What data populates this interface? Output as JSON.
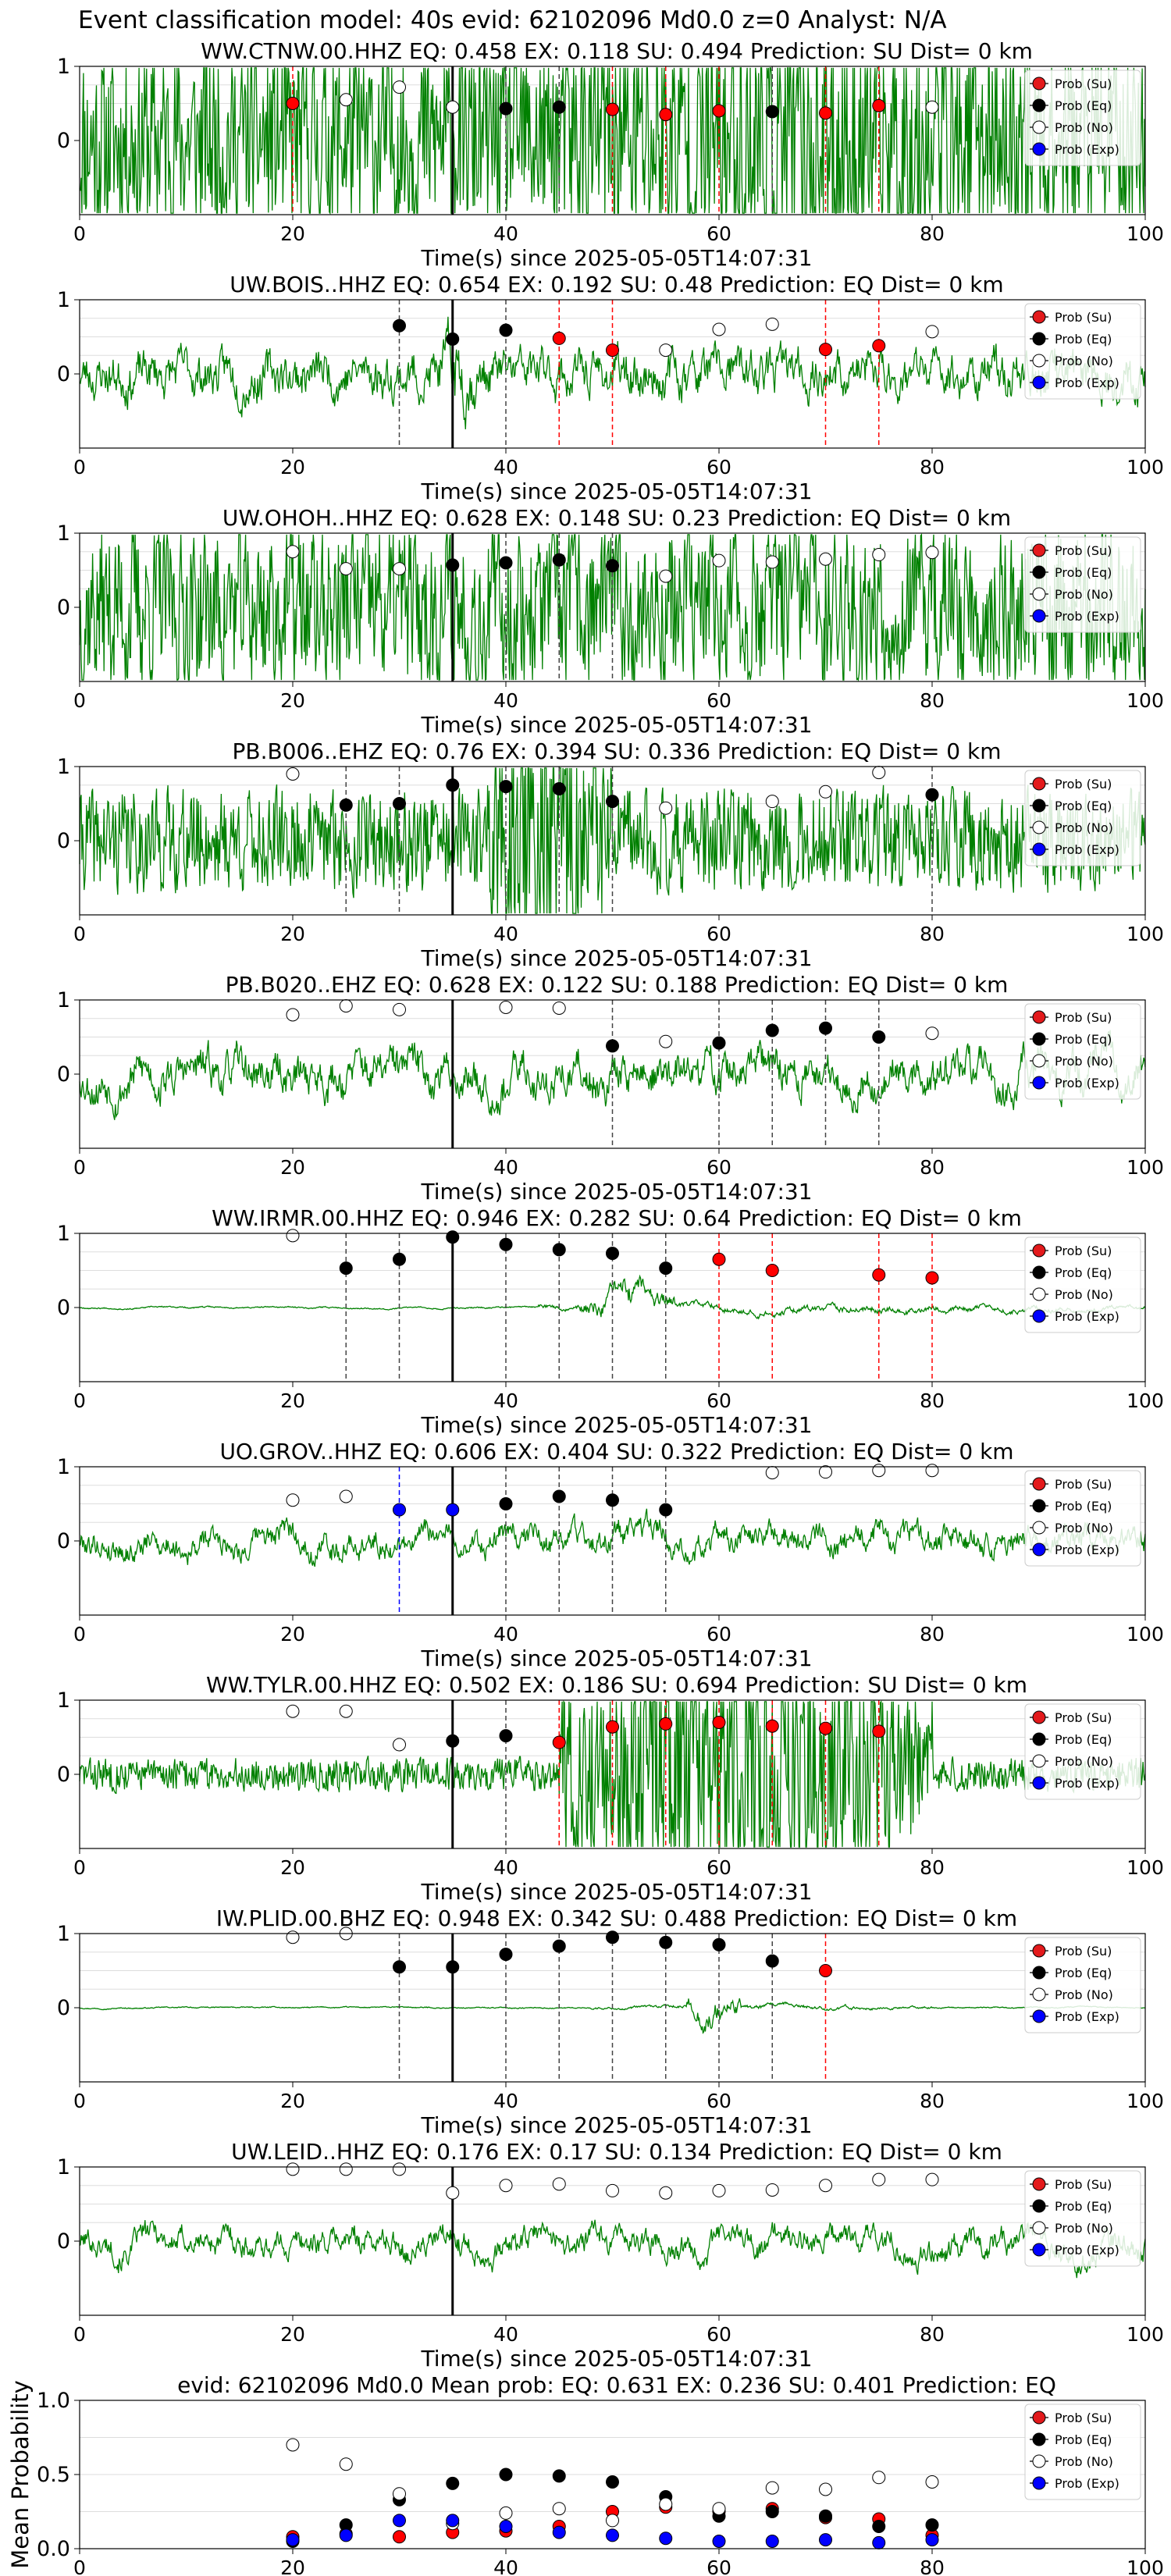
{
  "figure_title": "Event classification model: 40s evid: 62102096 Md0.0 z=0 Analyst: N/A",
  "xlabel": "Time(s) since 2025-05-05T14:07:31",
  "legend": [
    {
      "label": "Prob (Su)",
      "color": "#e31a1c"
    },
    {
      "label": "Prob (Eq)",
      "color": "#000000"
    },
    {
      "label": "Prob (No)",
      "color": "#ffffff"
    },
    {
      "label": "Prob (Exp)",
      "color": "#0000ff"
    }
  ],
  "colors": {
    "trace": "#008000",
    "su": "#ff0000",
    "eq": "#000000",
    "no": "#ffffff",
    "exp": "#0000ff",
    "line_su": "#ff0000",
    "line_eq": "#444444",
    "line_exp": "#0000ff"
  },
  "chart_data": [
    {
      "type": "line",
      "title": "WW.CTNW.00.HHZ   EQ: 0.458  EX: 0.118  SU: 0.494   Prediction: SU    Dist= 0 km",
      "xlim": [
        0,
        100
      ],
      "xticks": [
        0,
        20,
        40,
        60,
        80,
        100
      ],
      "ylim": [
        -1,
        1
      ],
      "yticks": [
        0,
        1
      ],
      "waveform": {
        "amp": 0.55,
        "seed": 11,
        "smooth": 0.25,
        "bursts": [
          [
            35,
            100,
            0.75
          ]
        ],
        "base": 0.45
      },
      "event_line": 35,
      "points": [
        {
          "x": 20,
          "y": 0.5,
          "cls": "su"
        },
        {
          "x": 25,
          "y": 0.55,
          "cls": "no"
        },
        {
          "x": 30,
          "y": 0.72,
          "cls": "no"
        },
        {
          "x": 35,
          "y": 0.45,
          "cls": "no"
        },
        {
          "x": 40,
          "y": 0.43,
          "cls": "eq"
        },
        {
          "x": 45,
          "y": 0.45,
          "cls": "eq"
        },
        {
          "x": 50,
          "y": 0.42,
          "cls": "su"
        },
        {
          "x": 55,
          "y": 0.35,
          "cls": "su"
        },
        {
          "x": 60,
          "y": 0.4,
          "cls": "su"
        },
        {
          "x": 65,
          "y": 0.39,
          "cls": "eq"
        },
        {
          "x": 70,
          "y": 0.37,
          "cls": "su"
        },
        {
          "x": 75,
          "y": 0.47,
          "cls": "su"
        },
        {
          "x": 80,
          "y": 0.45,
          "cls": "no"
        }
      ]
    },
    {
      "type": "line",
      "title": "UW.BOIS..HHZ   EQ: 0.654  EX: 0.192  SU: 0.48   Prediction: EQ    Dist= 0 km",
      "xlim": [
        0,
        100
      ],
      "xticks": [
        0,
        20,
        40,
        60,
        80,
        100
      ],
      "ylim": [
        -1,
        1
      ],
      "yticks": [
        0,
        1
      ],
      "waveform": {
        "amp": 0.45,
        "seed": 23,
        "smooth": 0.85,
        "bursts": [
          [
            33,
            38,
            0.9
          ],
          [
            44,
            48,
            0.6
          ]
        ],
        "base": 0.5
      },
      "event_line": 35,
      "points": [
        {
          "x": 30,
          "y": 0.65,
          "cls": "eq"
        },
        {
          "x": 35,
          "y": 0.47,
          "cls": "eq"
        },
        {
          "x": 40,
          "y": 0.59,
          "cls": "eq"
        },
        {
          "x": 45,
          "y": 0.48,
          "cls": "su"
        },
        {
          "x": 50,
          "y": 0.32,
          "cls": "su"
        },
        {
          "x": 55,
          "y": 0.32,
          "cls": "no"
        },
        {
          "x": 60,
          "y": 0.6,
          "cls": "no"
        },
        {
          "x": 65,
          "y": 0.67,
          "cls": "no"
        },
        {
          "x": 70,
          "y": 0.33,
          "cls": "su"
        },
        {
          "x": 75,
          "y": 0.38,
          "cls": "su"
        },
        {
          "x": 80,
          "y": 0.57,
          "cls": "no"
        }
      ]
    },
    {
      "type": "line",
      "title": "UW.OHOH..HHZ   EQ: 0.628  EX: 0.148  SU: 0.23   Prediction: EQ    Dist= 0 km",
      "xlim": [
        0,
        100
      ],
      "xticks": [
        0,
        20,
        40,
        60,
        80,
        100
      ],
      "ylim": [
        -1,
        1
      ],
      "yticks": [
        0,
        1
      ],
      "waveform": {
        "amp": 0.6,
        "seed": 37,
        "smooth": 0.5,
        "bursts": [],
        "base": 0.6
      },
      "event_line": 35,
      "points": [
        {
          "x": 20,
          "y": 0.75,
          "cls": "no"
        },
        {
          "x": 25,
          "y": 0.52,
          "cls": "no"
        },
        {
          "x": 30,
          "y": 0.52,
          "cls": "no"
        },
        {
          "x": 35,
          "y": 0.57,
          "cls": "eq"
        },
        {
          "x": 40,
          "y": 0.6,
          "cls": "eq"
        },
        {
          "x": 45,
          "y": 0.64,
          "cls": "eq"
        },
        {
          "x": 50,
          "y": 0.56,
          "cls": "eq"
        },
        {
          "x": 55,
          "y": 0.42,
          "cls": "no"
        },
        {
          "x": 60,
          "y": 0.63,
          "cls": "no"
        },
        {
          "x": 65,
          "y": 0.61,
          "cls": "no"
        },
        {
          "x": 70,
          "y": 0.65,
          "cls": "no"
        },
        {
          "x": 75,
          "y": 0.71,
          "cls": "no"
        },
        {
          "x": 80,
          "y": 0.74,
          "cls": "no"
        }
      ]
    },
    {
      "type": "line",
      "title": "PB.B006..EHZ   EQ: 0.76  EX: 0.394  SU: 0.336   Prediction: EQ    Dist= 0 km",
      "xlim": [
        0,
        100
      ],
      "xticks": [
        0,
        20,
        40,
        60,
        80,
        100
      ],
      "ylim": [
        -1,
        1
      ],
      "yticks": [
        0,
        1
      ],
      "waveform": {
        "amp": 0.22,
        "seed": 41,
        "smooth": 0.3,
        "bursts": [
          [
            38,
            50,
            0.8
          ]
        ],
        "base": 0.25
      },
      "event_line": 35,
      "points": [
        {
          "x": 20,
          "y": 0.9,
          "cls": "no"
        },
        {
          "x": 25,
          "y": 0.48,
          "cls": "eq"
        },
        {
          "x": 30,
          "y": 0.5,
          "cls": "eq"
        },
        {
          "x": 35,
          "y": 0.75,
          "cls": "eq"
        },
        {
          "x": 40,
          "y": 0.73,
          "cls": "eq"
        },
        {
          "x": 45,
          "y": 0.7,
          "cls": "eq"
        },
        {
          "x": 50,
          "y": 0.53,
          "cls": "eq"
        },
        {
          "x": 55,
          "y": 0.44,
          "cls": "no"
        },
        {
          "x": 65,
          "y": 0.53,
          "cls": "no"
        },
        {
          "x": 70,
          "y": 0.66,
          "cls": "no"
        },
        {
          "x": 75,
          "y": 0.92,
          "cls": "no"
        },
        {
          "x": 80,
          "y": 0.62,
          "cls": "eq"
        }
      ]
    },
    {
      "type": "line",
      "title": "PB.B020..EHZ   EQ: 0.628  EX: 0.122  SU: 0.188   Prediction: EQ    Dist= 0 km",
      "xlim": [
        0,
        100
      ],
      "xticks": [
        0,
        20,
        40,
        60,
        80,
        100
      ],
      "ylim": [
        -1,
        1
      ],
      "yticks": [
        0,
        1
      ],
      "waveform": {
        "amp": 0.7,
        "seed": 53,
        "smooth": 0.9,
        "bursts": [],
        "base": 0.7
      },
      "event_line": 35,
      "points": [
        {
          "x": 20,
          "y": 0.8,
          "cls": "no"
        },
        {
          "x": 25,
          "y": 0.92,
          "cls": "no"
        },
        {
          "x": 30,
          "y": 0.87,
          "cls": "no"
        },
        {
          "x": 40,
          "y": 0.9,
          "cls": "no"
        },
        {
          "x": 45,
          "y": 0.89,
          "cls": "no"
        },
        {
          "x": 50,
          "y": 0.38,
          "cls": "eq"
        },
        {
          "x": 55,
          "y": 0.44,
          "cls": "no"
        },
        {
          "x": 60,
          "y": 0.42,
          "cls": "eq"
        },
        {
          "x": 65,
          "y": 0.59,
          "cls": "eq"
        },
        {
          "x": 70,
          "y": 0.62,
          "cls": "eq"
        },
        {
          "x": 75,
          "y": 0.5,
          "cls": "eq"
        },
        {
          "x": 80,
          "y": 0.55,
          "cls": "no"
        }
      ]
    },
    {
      "type": "line",
      "title": "WW.IRMR.00.HHZ   EQ: 0.946  EX: 0.282  SU: 0.64   Prediction: EQ    Dist= 0 km",
      "xlim": [
        0,
        100
      ],
      "xticks": [
        0,
        20,
        40,
        60,
        80,
        100
      ],
      "ylim": [
        -1,
        1
      ],
      "yticks": [
        0,
        1
      ],
      "waveform": {
        "amp": 0.05,
        "seed": 67,
        "smooth": 0.95,
        "bursts": [
          [
            43,
            100,
            0.25
          ],
          [
            47,
            56,
            0.9
          ]
        ],
        "base": 0.05
      },
      "event_line": 35,
      "points": [
        {
          "x": 20,
          "y": 0.97,
          "cls": "no"
        },
        {
          "x": 25,
          "y": 0.53,
          "cls": "eq"
        },
        {
          "x": 30,
          "y": 0.65,
          "cls": "eq"
        },
        {
          "x": 35,
          "y": 0.95,
          "cls": "eq"
        },
        {
          "x": 40,
          "y": 0.85,
          "cls": "eq"
        },
        {
          "x": 45,
          "y": 0.78,
          "cls": "eq"
        },
        {
          "x": 50,
          "y": 0.73,
          "cls": "eq"
        },
        {
          "x": 55,
          "y": 0.53,
          "cls": "eq"
        },
        {
          "x": 60,
          "y": 0.65,
          "cls": "su"
        },
        {
          "x": 65,
          "y": 0.5,
          "cls": "su"
        },
        {
          "x": 75,
          "y": 0.44,
          "cls": "su"
        },
        {
          "x": 80,
          "y": 0.4,
          "cls": "su"
        }
      ]
    },
    {
      "type": "line",
      "title": "UO.GROV..HHZ   EQ: 0.606  EX: 0.404  SU: 0.322   Prediction: EQ    Dist= 0 km",
      "xlim": [
        0,
        100
      ],
      "xticks": [
        0,
        20,
        40,
        60,
        80,
        100
      ],
      "ylim": [
        -1,
        1
      ],
      "yticks": [
        0,
        1
      ],
      "waveform": {
        "amp": 0.65,
        "seed": 79,
        "smooth": 0.93,
        "bursts": [
          [
            43,
            46,
            0.9
          ]
        ],
        "base": 0.65
      },
      "event_line": 35,
      "points": [
        {
          "x": 20,
          "y": 0.55,
          "cls": "no"
        },
        {
          "x": 25,
          "y": 0.6,
          "cls": "no"
        },
        {
          "x": 30,
          "y": 0.42,
          "cls": "exp"
        },
        {
          "x": 35,
          "y": 0.42,
          "cls": "exp"
        },
        {
          "x": 40,
          "y": 0.5,
          "cls": "eq"
        },
        {
          "x": 45,
          "y": 0.6,
          "cls": "eq"
        },
        {
          "x": 50,
          "y": 0.55,
          "cls": "eq"
        },
        {
          "x": 55,
          "y": 0.42,
          "cls": "eq"
        },
        {
          "x": 65,
          "y": 0.92,
          "cls": "no"
        },
        {
          "x": 70,
          "y": 0.93,
          "cls": "no"
        },
        {
          "x": 75,
          "y": 0.95,
          "cls": "no"
        },
        {
          "x": 80,
          "y": 0.95,
          "cls": "no"
        }
      ]
    },
    {
      "type": "line",
      "title": "WW.TYLR.00.HHZ   EQ: 0.502  EX: 0.186  SU: 0.694   Prediction: SU    Dist= 0 km",
      "xlim": [
        0,
        100
      ],
      "xticks": [
        0,
        20,
        40,
        60,
        80,
        100
      ],
      "ylim": [
        -1,
        1
      ],
      "yticks": [
        0,
        1
      ],
      "waveform": {
        "amp": 0.08,
        "seed": 83,
        "smooth": 0.3,
        "bursts": [
          [
            45,
            80,
            0.8
          ]
        ],
        "base": 0.08
      },
      "event_line": 35,
      "points": [
        {
          "x": 20,
          "y": 0.85,
          "cls": "no"
        },
        {
          "x": 25,
          "y": 0.85,
          "cls": "no"
        },
        {
          "x": 30,
          "y": 0.4,
          "cls": "no"
        },
        {
          "x": 35,
          "y": 0.45,
          "cls": "eq"
        },
        {
          "x": 40,
          "y": 0.52,
          "cls": "eq"
        },
        {
          "x": 45,
          "y": 0.43,
          "cls": "su"
        },
        {
          "x": 50,
          "y": 0.64,
          "cls": "su"
        },
        {
          "x": 55,
          "y": 0.68,
          "cls": "su"
        },
        {
          "x": 60,
          "y": 0.7,
          "cls": "su"
        },
        {
          "x": 65,
          "y": 0.65,
          "cls": "su"
        },
        {
          "x": 70,
          "y": 0.62,
          "cls": "su"
        },
        {
          "x": 75,
          "y": 0.58,
          "cls": "su"
        }
      ]
    },
    {
      "type": "line",
      "title": "IW.PLID.00.BHZ   EQ: 0.948  EX: 0.342  SU: 0.488   Prediction: EQ    Dist= 0 km",
      "xlim": [
        0,
        100
      ],
      "xticks": [
        0,
        20,
        40,
        60,
        80,
        100
      ],
      "ylim": [
        -1,
        1
      ],
      "yticks": [
        0,
        1
      ],
      "waveform": {
        "amp": 0.04,
        "seed": 97,
        "smooth": 0.95,
        "bursts": [
          [
            48,
            80,
            0.15
          ],
          [
            57,
            62,
            1.0
          ]
        ],
        "base": 0.04
      },
      "event_line": 35,
      "points": [
        {
          "x": 20,
          "y": 0.95,
          "cls": "no"
        },
        {
          "x": 25,
          "y": 1.0,
          "cls": "no"
        },
        {
          "x": 30,
          "y": 0.55,
          "cls": "eq"
        },
        {
          "x": 35,
          "y": 0.55,
          "cls": "eq"
        },
        {
          "x": 40,
          "y": 0.72,
          "cls": "eq"
        },
        {
          "x": 45,
          "y": 0.83,
          "cls": "eq"
        },
        {
          "x": 50,
          "y": 0.95,
          "cls": "eq"
        },
        {
          "x": 55,
          "y": 0.88,
          "cls": "eq"
        },
        {
          "x": 60,
          "y": 0.85,
          "cls": "eq"
        },
        {
          "x": 65,
          "y": 0.63,
          "cls": "eq"
        },
        {
          "x": 70,
          "y": 0.5,
          "cls": "su"
        }
      ]
    },
    {
      "type": "line",
      "title": "UW.LEID..HHZ   EQ: 0.176  EX: 0.17  SU: 0.134   Prediction: EQ    Dist= 0 km",
      "xlim": [
        0,
        100
      ],
      "xticks": [
        0,
        20,
        40,
        60,
        80,
        100
      ],
      "ylim": [
        -1,
        1
      ],
      "yticks": [
        0,
        1
      ],
      "waveform": {
        "amp": 0.75,
        "seed": 101,
        "smooth": 0.94,
        "bursts": [],
        "base": 0.75
      },
      "event_line": 35,
      "points": [
        {
          "x": 20,
          "y": 0.97,
          "cls": "no"
        },
        {
          "x": 25,
          "y": 0.97,
          "cls": "no"
        },
        {
          "x": 30,
          "y": 0.97,
          "cls": "no"
        },
        {
          "x": 35,
          "y": 0.65,
          "cls": "no"
        },
        {
          "x": 40,
          "y": 0.75,
          "cls": "no"
        },
        {
          "x": 45,
          "y": 0.77,
          "cls": "no"
        },
        {
          "x": 50,
          "y": 0.68,
          "cls": "no"
        },
        {
          "x": 55,
          "y": 0.65,
          "cls": "no"
        },
        {
          "x": 60,
          "y": 0.68,
          "cls": "no"
        },
        {
          "x": 65,
          "y": 0.69,
          "cls": "no"
        },
        {
          "x": 70,
          "y": 0.75,
          "cls": "no"
        },
        {
          "x": 75,
          "y": 0.83,
          "cls": "no"
        },
        {
          "x": 80,
          "y": 0.83,
          "cls": "no"
        }
      ]
    },
    {
      "type": "scatter",
      "title": "evid: 62102096  Md0.0   Mean prob:   EQ: 0.631  EX: 0.236  SU: 0.401   Prediction: EQ",
      "xlim": [
        0,
        100
      ],
      "xticks": [
        0,
        20,
        40,
        60,
        80,
        100
      ],
      "ylim": [
        0,
        1
      ],
      "yticks": [
        0.0,
        0.5,
        1.0
      ],
      "ylabel": "Mean Probability",
      "x": [
        20,
        25,
        30,
        35,
        40,
        45,
        50,
        55,
        60,
        65,
        70,
        75,
        80
      ],
      "series": [
        {
          "name": "Prob (Su)",
          "cls": "su",
          "values": [
            0.08,
            0.1,
            0.08,
            0.11,
            0.12,
            0.15,
            0.25,
            0.28,
            0.25,
            0.27,
            0.21,
            0.2,
            0.09
          ]
        },
        {
          "name": "Prob (Eq)",
          "cls": "eq",
          "values": [
            0.05,
            0.16,
            0.33,
            0.44,
            0.5,
            0.49,
            0.45,
            0.35,
            0.22,
            0.25,
            0.22,
            0.15,
            0.16
          ]
        },
        {
          "name": "Prob (No)",
          "cls": "no",
          "values": [
            0.7,
            0.57,
            0.37,
            0.17,
            0.24,
            0.27,
            0.19,
            0.3,
            0.27,
            0.41,
            0.4,
            0.48,
            0.45
          ]
        },
        {
          "name": "Prob (Exp)",
          "cls": "exp",
          "values": [
            0.06,
            0.09,
            0.19,
            0.19,
            0.15,
            0.11,
            0.09,
            0.07,
            0.05,
            0.05,
            0.06,
            0.04,
            0.06
          ]
        }
      ]
    }
  ]
}
